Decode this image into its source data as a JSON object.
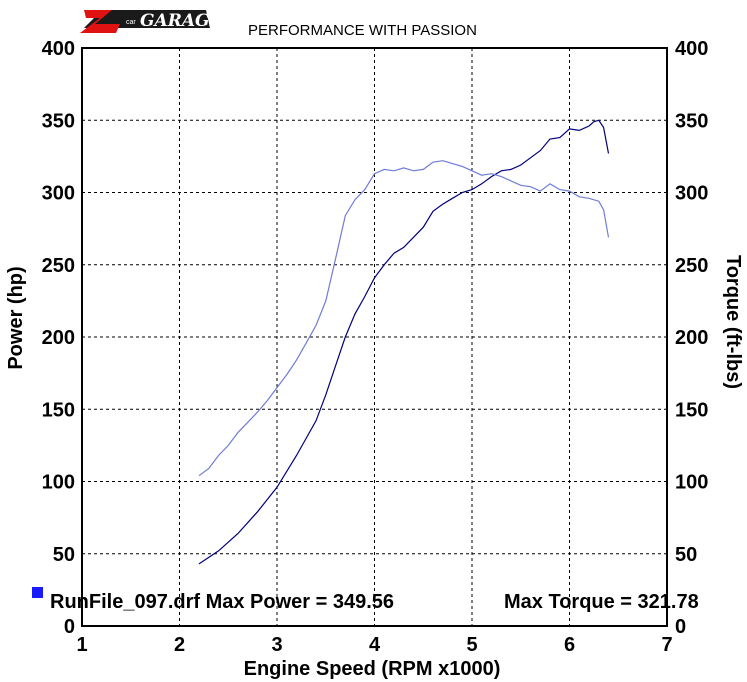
{
  "header": {
    "logo": {
      "brand_text": "GARAGE",
      "prefix_text": "car",
      "mark": "Z"
    },
    "subtitle": "PERFORMANCE WITH PASSION"
  },
  "chart_data": {
    "type": "line",
    "xlabel": "Engine Speed (RPM x1000)",
    "ylabel": "Power (hp)",
    "y2label": "Torque (ft-lbs)",
    "xlim": [
      1,
      7
    ],
    "ylim": [
      0,
      400
    ],
    "y2lim": [
      0,
      400
    ],
    "x_ticks": [
      "1",
      "2",
      "3",
      "4",
      "5",
      "6",
      "7"
    ],
    "y_ticks": [
      "0",
      "50",
      "100",
      "150",
      "200",
      "250",
      "300",
      "350",
      "400"
    ],
    "y2_ticks": [
      "0",
      "50",
      "100",
      "150",
      "200",
      "250",
      "300",
      "350",
      "400"
    ],
    "grid": true,
    "series": [
      {
        "axis": "left",
        "color": "#00007a",
        "values": [
          [
            2.2,
            43
          ],
          [
            2.4,
            52
          ],
          [
            2.6,
            64
          ],
          [
            2.8,
            79
          ],
          [
            3.0,
            96
          ],
          [
            3.2,
            118
          ],
          [
            3.4,
            142
          ],
          [
            3.5,
            160
          ],
          [
            3.6,
            180
          ],
          [
            3.7,
            200
          ],
          [
            3.8,
            216
          ],
          [
            3.9,
            228
          ],
          [
            4.0,
            241
          ],
          [
            4.1,
            250
          ],
          [
            4.2,
            258
          ],
          [
            4.3,
            262
          ],
          [
            4.4,
            269
          ],
          [
            4.5,
            276
          ],
          [
            4.6,
            287
          ],
          [
            4.7,
            292
          ],
          [
            4.8,
            296
          ],
          [
            4.9,
            300
          ],
          [
            5.0,
            302
          ],
          [
            5.1,
            306
          ],
          [
            5.2,
            311
          ],
          [
            5.3,
            315
          ],
          [
            5.4,
            316
          ],
          [
            5.5,
            319
          ],
          [
            5.6,
            324
          ],
          [
            5.7,
            329
          ],
          [
            5.8,
            337
          ],
          [
            5.9,
            338
          ],
          [
            6.0,
            344
          ],
          [
            6.1,
            343
          ],
          [
            6.2,
            346
          ],
          [
            6.25,
            349
          ],
          [
            6.3,
            350
          ],
          [
            6.35,
            345
          ],
          [
            6.4,
            327
          ]
        ]
      },
      {
        "axis": "right",
        "color": "#6f7cd6",
        "values": [
          [
            2.2,
            104
          ],
          [
            2.3,
            109
          ],
          [
            2.4,
            118
          ],
          [
            2.5,
            125
          ],
          [
            2.6,
            134
          ],
          [
            2.7,
            141
          ],
          [
            2.8,
            148
          ],
          [
            2.9,
            156
          ],
          [
            3.0,
            165
          ],
          [
            3.1,
            174
          ],
          [
            3.2,
            184
          ],
          [
            3.3,
            196
          ],
          [
            3.4,
            208
          ],
          [
            3.5,
            225
          ],
          [
            3.6,
            254
          ],
          [
            3.7,
            284
          ],
          [
            3.8,
            295
          ],
          [
            3.9,
            302
          ],
          [
            4.0,
            313
          ],
          [
            4.1,
            316
          ],
          [
            4.2,
            315
          ],
          [
            4.3,
            317
          ],
          [
            4.4,
            315
          ],
          [
            4.5,
            316
          ],
          [
            4.6,
            321
          ],
          [
            4.7,
            322
          ],
          [
            4.8,
            320
          ],
          [
            4.9,
            318
          ],
          [
            5.0,
            315
          ],
          [
            5.1,
            312
          ],
          [
            5.2,
            313
          ],
          [
            5.3,
            311
          ],
          [
            5.4,
            308
          ],
          [
            5.5,
            305
          ],
          [
            5.6,
            304
          ],
          [
            5.7,
            301
          ],
          [
            5.8,
            306
          ],
          [
            5.9,
            302
          ],
          [
            6.0,
            301
          ],
          [
            6.1,
            297
          ],
          [
            6.2,
            296
          ],
          [
            6.3,
            294
          ],
          [
            6.35,
            288
          ],
          [
            6.4,
            269
          ]
        ]
      }
    ],
    "legend": {
      "text_left": "RunFile_097.drf Max Power = 349.56",
      "text_right": "Max Torque = 321.78",
      "swatch_color": "#1a1aff",
      "placement": "bottom-left"
    }
  }
}
